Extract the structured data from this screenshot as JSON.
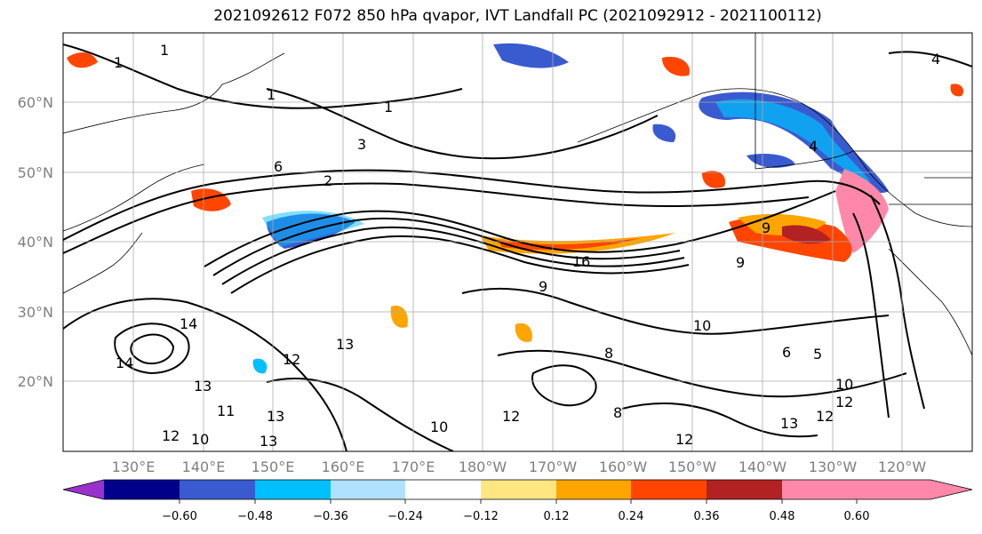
{
  "title": "2021092612 F072 850 hPa qvapor, IVT Landfall PC (2021092912 - 2021100112)",
  "lat_labels": [
    "60°N",
    "50°N",
    "40°N",
    "30°N",
    "20°N"
  ],
  "lon_labels": [
    "130°E",
    "140°E",
    "150°E",
    "160°E",
    "170°E",
    "180°W",
    "170°W",
    "160°W",
    "150°W",
    "140°W",
    "130°W",
    "120°W"
  ],
  "colorbar": {
    "colors": [
      "#9932cc",
      "#00008b",
      "#3a5bcf",
      "#00bfff",
      "#b0e2ff",
      "#ffffff",
      "#ffe680",
      "#ffa500",
      "#ff4500",
      "#b22222",
      "#ff88aa"
    ],
    "tick_labels": [
      "−0.60",
      "−0.48",
      "−0.36",
      "−0.24",
      "−0.12",
      "0.12",
      "0.24",
      "0.36",
      "0.48",
      "0.60"
    ]
  },
  "contour_labels": [
    "1",
    "1",
    "1",
    "1",
    "3",
    "6",
    "2",
    "4",
    "4",
    "9",
    "9",
    "14",
    "14",
    "13",
    "12",
    "13",
    "13",
    "11",
    "12",
    "10",
    "13",
    "12",
    "10",
    "12",
    "10",
    "8",
    "8",
    "6",
    "5",
    "10",
    "13",
    "12",
    "12",
    "9",
    "16"
  ]
}
